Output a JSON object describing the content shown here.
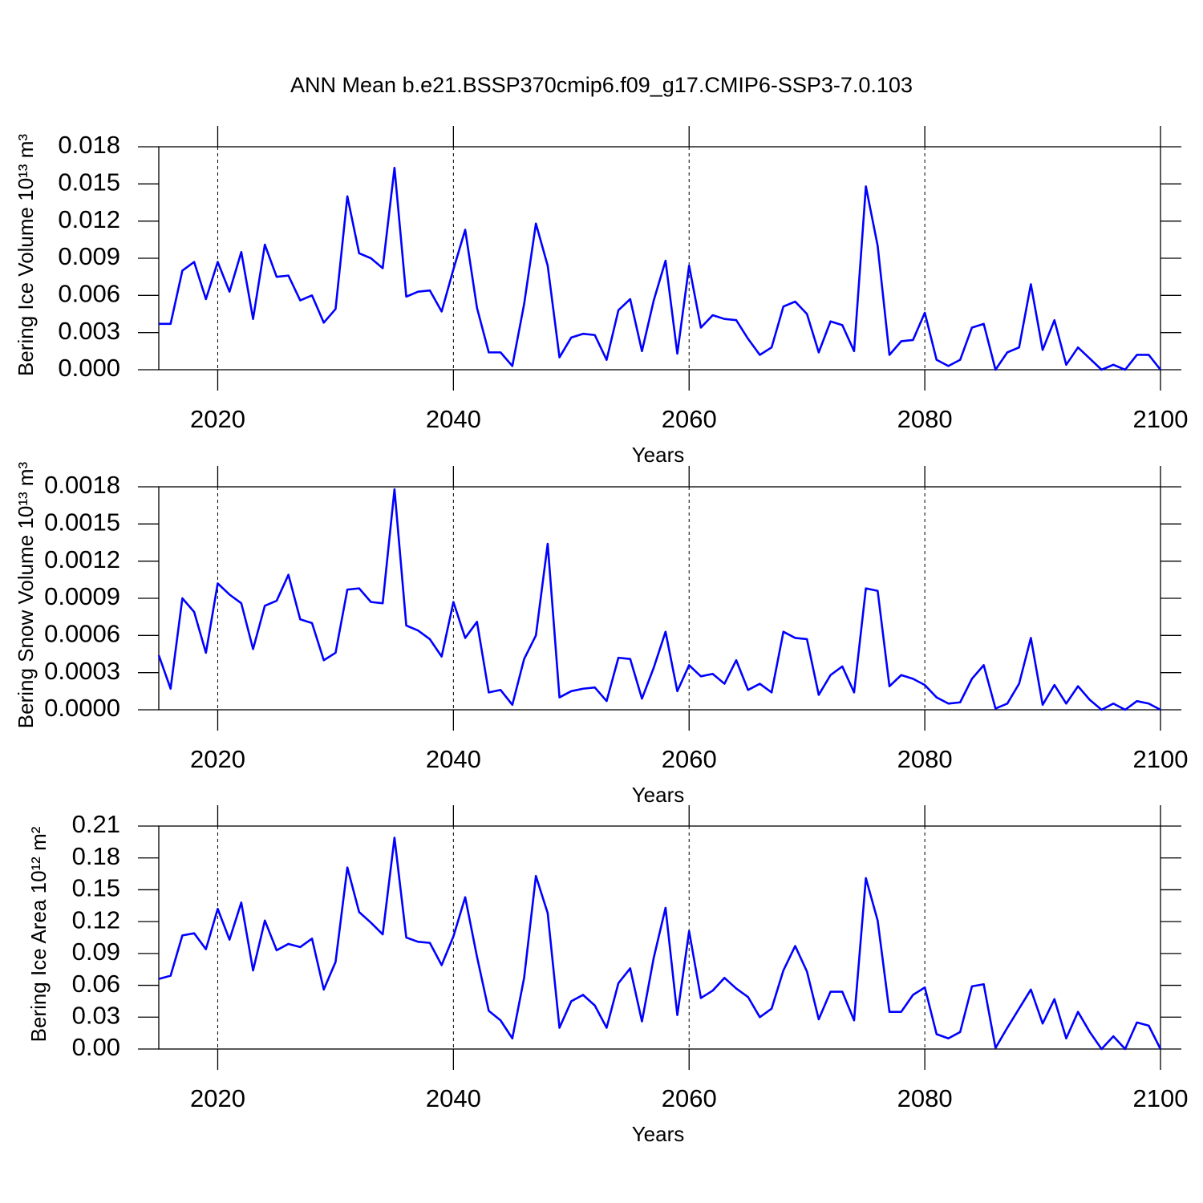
{
  "chart_data": [
    {
      "type": "line",
      "title": "ANN Mean b.e21.BSSP370cmip6.f09_g17.CMIP6-SSP3-7.0.103",
      "xlabel": "Years",
      "ylabel": "Bering Ice Volume 10¹³ m³",
      "x": [
        2015,
        2016,
        2017,
        2018,
        2019,
        2020,
        2021,
        2022,
        2023,
        2024,
        2025,
        2026,
        2027,
        2028,
        2029,
        2030,
        2031,
        2032,
        2033,
        2034,
        2035,
        2036,
        2037,
        2038,
        2039,
        2040,
        2041,
        2042,
        2043,
        2044,
        2045,
        2046,
        2047,
        2048,
        2049,
        2050,
        2051,
        2052,
        2053,
        2054,
        2055,
        2056,
        2057,
        2058,
        2059,
        2060,
        2061,
        2062,
        2063,
        2064,
        2065,
        2066,
        2067,
        2068,
        2069,
        2070,
        2071,
        2072,
        2073,
        2074,
        2075,
        2076,
        2077,
        2078,
        2079,
        2080,
        2081,
        2082,
        2083,
        2084,
        2085,
        2086,
        2087,
        2088,
        2089,
        2090,
        2091,
        2092,
        2093,
        2094,
        2095,
        2096,
        2097,
        2098,
        2099,
        2100
      ],
      "series": [
        {
          "color": "#0000ff",
          "values": [
            0.0037,
            0.0037,
            0.008,
            0.0087,
            0.0057,
            0.0087,
            0.0063,
            0.0095,
            0.0041,
            0.0101,
            0.0075,
            0.0076,
            0.0056,
            0.006,
            0.0038,
            0.0049,
            0.014,
            0.0094,
            0.009,
            0.0082,
            0.0163,
            0.0059,
            0.0063,
            0.0064,
            0.0047,
            0.0081,
            0.0113,
            0.005,
            0.0014,
            0.0014,
            0.0003,
            0.0053,
            0.0118,
            0.0084,
            0.001,
            0.0026,
            0.0029,
            0.0028,
            0.0008,
            0.0048,
            0.0057,
            0.0015,
            0.0056,
            0.0088,
            0.0013,
            0.0084,
            0.0034,
            0.0044,
            0.0041,
            0.004,
            0.0025,
            0.0012,
            0.0018,
            0.0051,
            0.0055,
            0.0045,
            0.0014,
            0.0039,
            0.0036,
            0.0015,
            0.0148,
            0.01,
            0.0012,
            0.0023,
            0.0024,
            0.0046,
            0.0008,
            0.0003,
            0.0008,
            0.0034,
            0.0037,
            0.0,
            0.0014,
            0.0018,
            0.0069,
            0.0016,
            0.004,
            0.0004,
            0.0018,
            0.0009,
            0.0,
            0.0004,
            0.0,
            0.0012,
            0.0012,
            0.0
          ]
        }
      ],
      "xlim": [
        2015,
        2100
      ],
      "xticks": [
        2020,
        2040,
        2060,
        2080,
        2100
      ],
      "ylim": [
        0,
        0.018
      ],
      "yticks": [
        {
          "value": 0,
          "label": "0.000"
        },
        0.003,
        0.006,
        0.009,
        0.012,
        0.015,
        0.018
      ],
      "grid": true
    },
    {
      "type": "line",
      "xlabel": "Years",
      "ylabel": "Bering Snow Volume 10¹³ m³",
      "x": [
        2015,
        2016,
        2017,
        2018,
        2019,
        2020,
        2021,
        2022,
        2023,
        2024,
        2025,
        2026,
        2027,
        2028,
        2029,
        2030,
        2031,
        2032,
        2033,
        2034,
        2035,
        2036,
        2037,
        2038,
        2039,
        2040,
        2041,
        2042,
        2043,
        2044,
        2045,
        2046,
        2047,
        2048,
        2049,
        2050,
        2051,
        2052,
        2053,
        2054,
        2055,
        2056,
        2057,
        2058,
        2059,
        2060,
        2061,
        2062,
        2063,
        2064,
        2065,
        2066,
        2067,
        2068,
        2069,
        2070,
        2071,
        2072,
        2073,
        2074,
        2075,
        2076,
        2077,
        2078,
        2079,
        2080,
        2081,
        2082,
        2083,
        2084,
        2085,
        2086,
        2087,
        2088,
        2089,
        2090,
        2091,
        2092,
        2093,
        2094,
        2095,
        2096,
        2097,
        2098,
        2099,
        2100
      ],
      "series": [
        {
          "color": "#0000ff",
          "values": [
            0.00044,
            0.00017,
            0.0009,
            0.00079,
            0.00046,
            0.00102,
            0.00093,
            0.00086,
            0.00049,
            0.00084,
            0.00088,
            0.00109,
            0.00073,
            0.0007,
            0.0004,
            0.00046,
            0.00097,
            0.00098,
            0.00087,
            0.00086,
            0.00178,
            0.00068,
            0.00064,
            0.00057,
            0.00043,
            0.00087,
            0.00058,
            0.00071,
            0.00014,
            0.00016,
            4e-05,
            0.00041,
            0.0006,
            0.00134,
            0.0001,
            0.00015,
            0.00017,
            0.00018,
            7e-05,
            0.00042,
            0.00041,
            9e-05,
            0.00034,
            0.00063,
            0.00015,
            0.00036,
            0.00027,
            0.00029,
            0.00021,
            0.0004,
            0.00016,
            0.00021,
            0.00014,
            0.00063,
            0.00058,
            0.00057,
            0.00012,
            0.00028,
            0.00035,
            0.00014,
            0.00098,
            0.00096,
            0.00019,
            0.00028,
            0.00025,
            0.0002,
            0.0001,
            5e-05,
            6e-05,
            0.00025,
            0.00036,
            1e-05,
            5e-05,
            0.00021,
            0.00058,
            4e-05,
            0.0002,
            5e-05,
            0.00019,
            8e-05,
            0.0,
            5e-05,
            0.0,
            7e-05,
            5e-05,
            0.0
          ]
        }
      ],
      "xlim": [
        2015,
        2100
      ],
      "xticks": [
        2020,
        2040,
        2060,
        2080,
        2100
      ],
      "ylim": [
        0,
        0.0018
      ],
      "yticks": [
        {
          "value": 0,
          "label": "0.0000"
        },
        0.0003,
        0.0006,
        0.0009,
        0.0012,
        0.0015,
        0.0018
      ],
      "grid": true
    },
    {
      "type": "line",
      "xlabel": "Years",
      "ylabel": "Bering Ice Area 10¹² m²",
      "x": [
        2015,
        2016,
        2017,
        2018,
        2019,
        2020,
        2021,
        2022,
        2023,
        2024,
        2025,
        2026,
        2027,
        2028,
        2029,
        2030,
        2031,
        2032,
        2033,
        2034,
        2035,
        2036,
        2037,
        2038,
        2039,
        2040,
        2041,
        2042,
        2043,
        2044,
        2045,
        2046,
        2047,
        2048,
        2049,
        2050,
        2051,
        2052,
        2053,
        2054,
        2055,
        2056,
        2057,
        2058,
        2059,
        2060,
        2061,
        2062,
        2063,
        2064,
        2065,
        2066,
        2067,
        2068,
        2069,
        2070,
        2071,
        2072,
        2073,
        2074,
        2075,
        2076,
        2077,
        2078,
        2079,
        2080,
        2081,
        2082,
        2083,
        2084,
        2085,
        2086,
        2087,
        2088,
        2089,
        2090,
        2091,
        2092,
        2093,
        2094,
        2095,
        2096,
        2097,
        2098,
        2099,
        2100
      ],
      "series": [
        {
          "color": "#0000ff",
          "values": [
            0.066,
            0.069,
            0.107,
            0.109,
            0.094,
            0.132,
            0.103,
            0.138,
            0.074,
            0.121,
            0.093,
            0.099,
            0.096,
            0.104,
            0.056,
            0.082,
            0.171,
            0.129,
            0.119,
            0.108,
            0.199,
            0.105,
            0.101,
            0.1,
            0.079,
            0.106,
            0.143,
            0.087,
            0.036,
            0.027,
            0.01,
            0.067,
            0.163,
            0.128,
            0.02,
            0.045,
            0.051,
            0.041,
            0.02,
            0.062,
            0.076,
            0.026,
            0.086,
            0.133,
            0.032,
            0.111,
            0.048,
            0.055,
            0.067,
            0.057,
            0.049,
            0.03,
            0.038,
            0.074,
            0.097,
            0.073,
            0.028,
            0.054,
            0.054,
            0.027,
            0.161,
            0.121,
            0.035,
            0.035,
            0.051,
            0.058,
            0.014,
            0.01,
            0.016,
            0.059,
            0.061,
            0.001,
            0.02,
            0.038,
            0.056,
            0.024,
            0.047,
            0.01,
            0.035,
            0.016,
            0.0,
            0.012,
            0.0,
            0.025,
            0.022,
            0.0
          ]
        }
      ],
      "xlim": [
        2015,
        2100
      ],
      "xticks": [
        2020,
        2040,
        2060,
        2080,
        2100
      ],
      "ylim": [
        0,
        0.21
      ],
      "yticks": [
        {
          "value": 0,
          "label": "0.00"
        },
        0.03,
        0.06,
        0.09,
        0.12,
        0.15,
        0.18,
        0.21
      ],
      "grid": true
    }
  ]
}
